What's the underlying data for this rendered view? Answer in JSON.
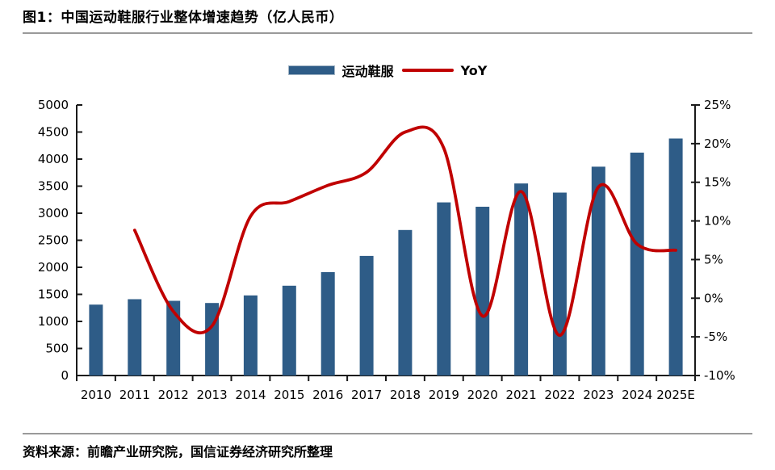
{
  "figure": {
    "title": "图1：中国运动鞋服行业整体增速趋势（亿人民币）",
    "source": "资料来源：前瞻产业研究院，国信证券经济研究所整理"
  },
  "legend": [
    {
      "label": "运动鞋服",
      "marker": "bar-swatch",
      "color": "#2E5C87"
    },
    {
      "label": "YoY",
      "marker": "line-swatch",
      "color": "#C00000"
    }
  ],
  "chart_data": {
    "type": "bar",
    "title": "图1：中国运动鞋服行业整体增速趋势（亿人民币）",
    "xlabel": "",
    "ylabel": "",
    "grid": false,
    "legend_position": "top-center",
    "categories": [
      "2010",
      "2011",
      "2012",
      "2013",
      "2014",
      "2015",
      "2016",
      "2017",
      "2018",
      "2019",
      "2020",
      "2021",
      "2022",
      "2023",
      "2024",
      "2025E"
    ],
    "series": [
      {
        "name": "运动鞋服",
        "type": "bar",
        "axis": "left",
        "color": "#2E5C87",
        "values": [
          1310,
          1410,
          1380,
          1340,
          1480,
          1660,
          1910,
          2210,
          2690,
          3200,
          3120,
          3550,
          3380,
          3860,
          4120,
          4380
        ]
      },
      {
        "name": "YoY",
        "type": "line",
        "axis": "right",
        "color": "#C00000",
        "values": [
          null,
          8.8,
          -1.7,
          -3.6,
          10.6,
          12.5,
          14.6,
          16.3,
          21.5,
          19.4,
          -2.3,
          13.8,
          -4.8,
          14.4,
          7.0,
          6.2
        ]
      }
    ],
    "left_axis": {
      "min": 0,
      "max": 5000,
      "step": 500,
      "tick_labels": [
        "0",
        "500",
        "1000",
        "1500",
        "2000",
        "2500",
        "3000",
        "3500",
        "4000",
        "4500",
        "5000"
      ]
    },
    "right_axis": {
      "min": -10,
      "max": 25,
      "step": 5,
      "tick_labels": [
        "-10%",
        "-5%",
        "0%",
        "5%",
        "10%",
        "15%",
        "20%",
        "25%"
      ]
    }
  }
}
